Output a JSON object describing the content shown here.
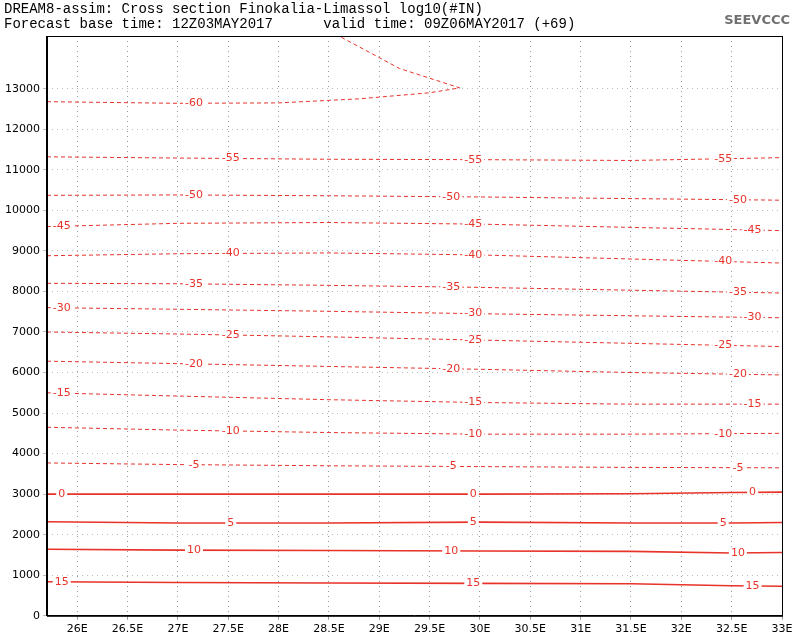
{
  "chart_data": {
    "type": "line",
    "title": "DREAM8-assim: Cross section Finokalia-Limassol log10(#IN)",
    "subtitle": "Forecast base time: 12Z03MAY2017      valid time: 09Z06MAY2017 (+69)",
    "annotations": [
      "SEEVCCC"
    ],
    "xlim": [
      25.7,
      33
    ],
    "xticks": [
      {
        "value": 26,
        "label": "26E"
      },
      {
        "value": 26.5,
        "label": "26.5E"
      },
      {
        "value": 27,
        "label": "27E"
      },
      {
        "value": 27.5,
        "label": "27.5E"
      },
      {
        "value": 28,
        "label": "28E"
      },
      {
        "value": 28.5,
        "label": "28.5E"
      },
      {
        "value": 29,
        "label": "29E"
      },
      {
        "value": 29.5,
        "label": "29.5E"
      },
      {
        "value": 30,
        "label": "30E"
      },
      {
        "value": 30.5,
        "label": "30.5E"
      },
      {
        "value": 31,
        "label": "31E"
      },
      {
        "value": 31.5,
        "label": "31.5E"
      },
      {
        "value": 32,
        "label": "32E"
      },
      {
        "value": 32.5,
        "label": "32.5E"
      },
      {
        "value": 33,
        "label": "33E"
      }
    ],
    "ylim": [
      0,
      14300
    ],
    "yticks": [
      0,
      1000,
      2000,
      3000,
      4000,
      5000,
      6000,
      7000,
      8000,
      9000,
      10000,
      11000,
      12000,
      13000
    ],
    "grid": true,
    "series": [
      {
        "name": "15",
        "color": "#e8332a",
        "line_style": "solid",
        "x": [
          25.7,
          27,
          28.5,
          30,
          31.5,
          32.5,
          33
        ],
        "values": [
          840,
          820,
          810,
          800,
          790,
          740,
          730
        ]
      },
      {
        "name": "10",
        "color": "#e8332a",
        "line_style": "solid",
        "x": [
          25.7,
          27,
          28.5,
          30,
          31.5,
          32.5,
          33
        ],
        "values": [
          1640,
          1620,
          1610,
          1600,
          1590,
          1550,
          1560
        ]
      },
      {
        "name": "5",
        "color": "#e8332a",
        "line_style": "solid",
        "x": [
          25.7,
          27,
          28.5,
          30,
          31.5,
          32.5,
          33
        ],
        "values": [
          2320,
          2290,
          2290,
          2310,
          2290,
          2290,
          2300
        ]
      },
      {
        "name": "0",
        "color": "#e8332a",
        "line_style": "solid",
        "x": [
          25.7,
          27,
          28.5,
          30,
          31.5,
          32.5,
          33
        ],
        "values": [
          3000,
          3000,
          3000,
          3000,
          3010,
          3040,
          3050
        ]
      },
      {
        "name": "-5",
        "color": "#e8332a",
        "line_style": "dashed",
        "x": [
          25.7,
          27,
          28.5,
          30,
          31.5,
          33
        ],
        "values": [
          3770,
          3730,
          3700,
          3680,
          3660,
          3650
        ]
      },
      {
        "name": "-10",
        "color": "#e8332a",
        "line_style": "dashed",
        "x": [
          25.7,
          27,
          28.5,
          30,
          31.5,
          33
        ],
        "values": [
          4650,
          4580,
          4520,
          4480,
          4480,
          4500
        ]
      },
      {
        "name": "-15",
        "color": "#e8332a",
        "line_style": "dashed",
        "x": [
          25.7,
          27,
          28.5,
          30,
          31.5,
          33
        ],
        "values": [
          5500,
          5420,
          5330,
          5260,
          5220,
          5220
        ]
      },
      {
        "name": "-20",
        "color": "#e8332a",
        "line_style": "dashed",
        "x": [
          25.7,
          27,
          28.5,
          30,
          31.5,
          33
        ],
        "values": [
          6280,
          6220,
          6150,
          6080,
          6000,
          5940
        ]
      },
      {
        "name": "-25",
        "color": "#e8332a",
        "line_style": "dashed",
        "x": [
          25.7,
          27,
          28.5,
          30,
          31.5,
          33
        ],
        "values": [
          7000,
          6950,
          6880,
          6800,
          6720,
          6640
        ]
      },
      {
        "name": "-30",
        "color": "#e8332a",
        "line_style": "dashed",
        "x": [
          25.7,
          27,
          28.5,
          30,
          31.5,
          33
        ],
        "values": [
          7600,
          7560,
          7510,
          7450,
          7400,
          7350
        ]
      },
      {
        "name": "-35",
        "color": "#e8332a",
        "line_style": "dashed",
        "x": [
          25.7,
          27,
          28.5,
          30,
          31.5,
          33
        ],
        "values": [
          8200,
          8190,
          8150,
          8100,
          8030,
          7960
        ]
      },
      {
        "name": "-40",
        "color": "#e8332a",
        "line_style": "dashed",
        "x": [
          25.7,
          27,
          28.5,
          30,
          31.5,
          33
        ],
        "values": [
          8880,
          8930,
          8950,
          8900,
          8800,
          8700
        ]
      },
      {
        "name": "-45",
        "color": "#e8332a",
        "line_style": "dashed",
        "x": [
          25.7,
          27,
          28.5,
          30,
          31.5,
          33
        ],
        "values": [
          9600,
          9680,
          9700,
          9660,
          9580,
          9500
        ]
      },
      {
        "name": "-50",
        "color": "#e8332a",
        "line_style": "dashed",
        "x": [
          25.7,
          27,
          28.5,
          30,
          31.5,
          33
        ],
        "values": [
          10370,
          10380,
          10360,
          10330,
          10290,
          10250
        ]
      },
      {
        "name": "-55",
        "color": "#e8332a",
        "line_style": "dashed",
        "x": [
          25.7,
          27,
          28.5,
          30,
          31.5,
          33
        ],
        "values": [
          11320,
          11290,
          11260,
          11250,
          11230,
          11300
        ]
      },
      {
        "name": "-60",
        "color": "#e8332a",
        "line_style": "dashed",
        "x": [
          25.7,
          27,
          28,
          28.8,
          29.5,
          29.8,
          29.2,
          28.6
        ],
        "values": [
          12680,
          12640,
          12650,
          12750,
          12900,
          13020,
          13500,
          14300
        ]
      }
    ]
  }
}
